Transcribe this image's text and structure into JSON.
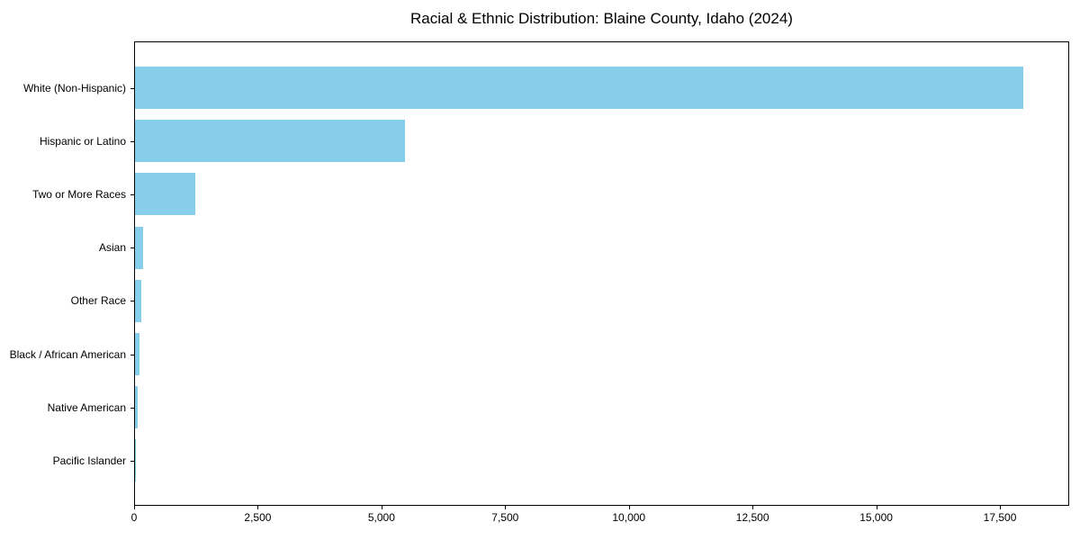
{
  "chart_data": {
    "type": "bar",
    "orientation": "horizontal",
    "title": "Racial & Ethnic Distribution: Blaine County, Idaho (2024)",
    "categories": [
      "White (Non-Hispanic)",
      "Hispanic or Latino",
      "Two or More Races",
      "Asian",
      "Other Race",
      "Black / African American",
      "Native American",
      "Pacific Islander"
    ],
    "values": [
      17950,
      5450,
      1220,
      170,
      130,
      95,
      55,
      10
    ],
    "bar_color": "#87CEEB",
    "xlabel": "",
    "ylabel": "",
    "xlim": [
      0,
      18900
    ],
    "xticks": {
      "values": [
        0,
        2500,
        5000,
        7500,
        10000,
        12500,
        15000,
        17500
      ],
      "labels": [
        "0",
        "2,500",
        "5,000",
        "7,500",
        "10,000",
        "12,500",
        "15,000",
        "17,500"
      ]
    },
    "grid": false,
    "legend": "none",
    "frame": "full-box",
    "background": "#ffffff"
  }
}
